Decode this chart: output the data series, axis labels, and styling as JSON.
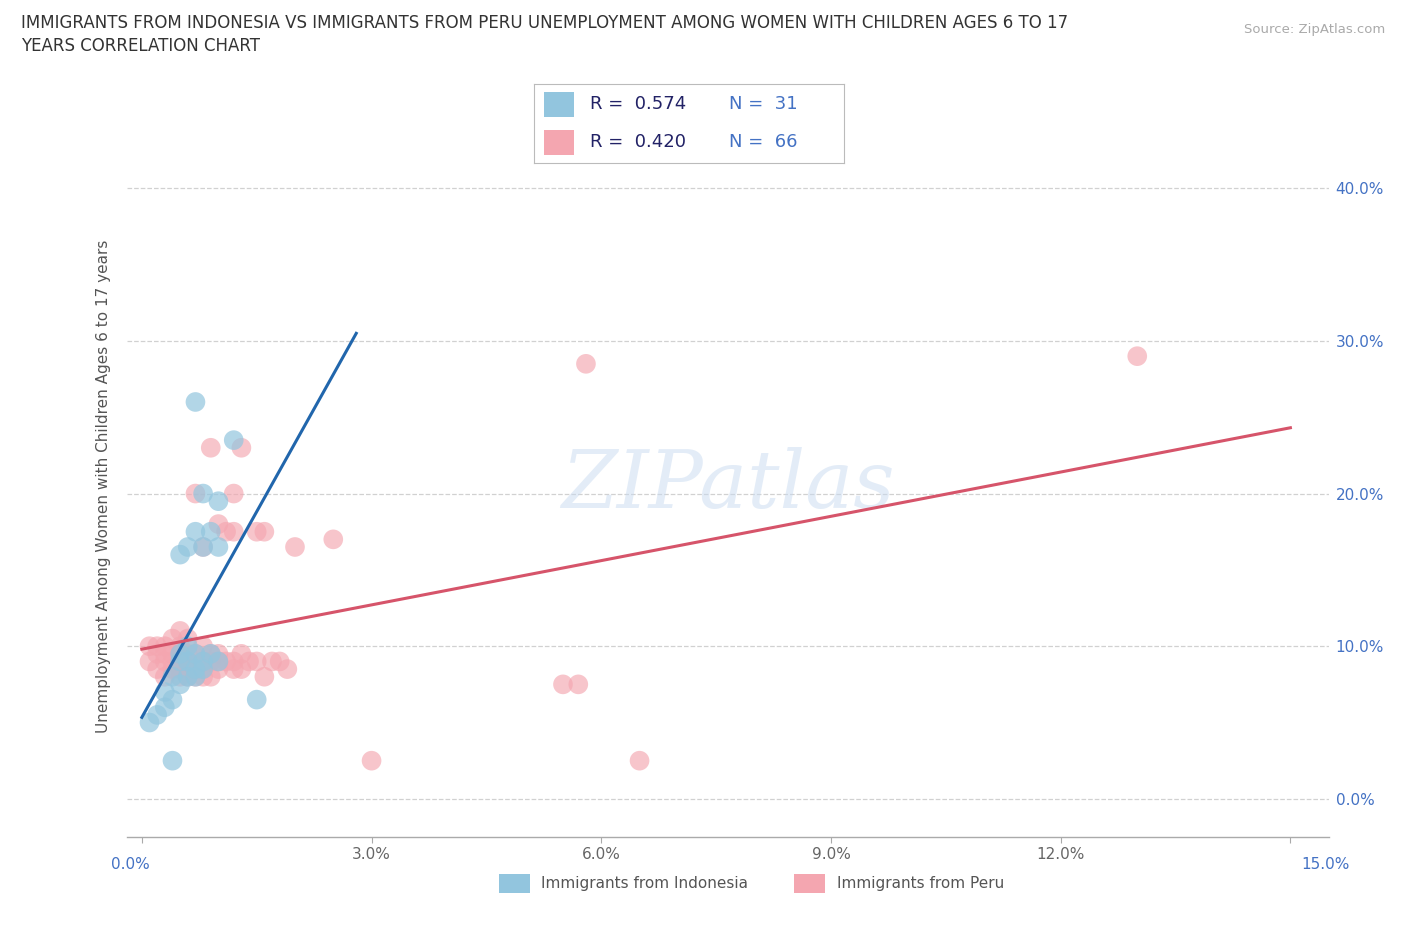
{
  "title_line1": "IMMIGRANTS FROM INDONESIA VS IMMIGRANTS FROM PERU UNEMPLOYMENT AMONG WOMEN WITH CHILDREN AGES 6 TO 17",
  "title_line2": "YEARS CORRELATION CHART",
  "source": "Source: ZipAtlas.com",
  "ylabel": "Unemployment Among Women with Children Ages 6 to 17 years",
  "xlim": [
    -0.002,
    0.155
  ],
  "ylim": [
    -0.025,
    0.435
  ],
  "xticks": [
    0.0,
    0.03,
    0.06,
    0.09,
    0.12,
    0.15
  ],
  "yticks": [
    0.0,
    0.1,
    0.2,
    0.3,
    0.4
  ],
  "xtick_labels_inside": [
    "",
    "3.0%",
    "6.0%",
    "9.0%",
    "12.0%",
    ""
  ],
  "xtick_left_label": "0.0%",
  "xtick_right_label": "15.0%",
  "ytick_labels": [
    "0.0%",
    "10.0%",
    "20.0%",
    "30.0%",
    "40.0%"
  ],
  "background_color": "#ffffff",
  "grid_color": "#cccccc",
  "watermark": "ZIPatlas",
  "color_indonesia": "#92c5de",
  "color_peru": "#f4a6b0",
  "color_indonesia_line": "#2166ac",
  "color_peru_line": "#d6546a",
  "label_indonesia": "Immigrants from Indonesia",
  "label_peru": "Immigrants from Peru",
  "indonesia_x": [
    0.001,
    0.002,
    0.003,
    0.003,
    0.004,
    0.004,
    0.004,
    0.005,
    0.005,
    0.005,
    0.005,
    0.006,
    0.006,
    0.006,
    0.006,
    0.007,
    0.007,
    0.007,
    0.007,
    0.007,
    0.008,
    0.008,
    0.008,
    0.008,
    0.009,
    0.009,
    0.01,
    0.01,
    0.01,
    0.012,
    0.015
  ],
  "indonesia_y": [
    0.05,
    0.055,
    0.06,
    0.07,
    0.025,
    0.065,
    0.08,
    0.075,
    0.09,
    0.095,
    0.16,
    0.08,
    0.09,
    0.1,
    0.165,
    0.08,
    0.085,
    0.095,
    0.175,
    0.26,
    0.085,
    0.09,
    0.165,
    0.2,
    0.095,
    0.175,
    0.09,
    0.165,
    0.195,
    0.235,
    0.065
  ],
  "peru_x": [
    0.001,
    0.001,
    0.002,
    0.002,
    0.002,
    0.003,
    0.003,
    0.003,
    0.003,
    0.004,
    0.004,
    0.004,
    0.004,
    0.005,
    0.005,
    0.005,
    0.005,
    0.005,
    0.005,
    0.006,
    0.006,
    0.006,
    0.006,
    0.006,
    0.007,
    0.007,
    0.007,
    0.007,
    0.008,
    0.008,
    0.008,
    0.008,
    0.008,
    0.009,
    0.009,
    0.009,
    0.009,
    0.01,
    0.01,
    0.01,
    0.01,
    0.011,
    0.011,
    0.012,
    0.012,
    0.012,
    0.012,
    0.013,
    0.013,
    0.013,
    0.014,
    0.015,
    0.015,
    0.016,
    0.016,
    0.017,
    0.018,
    0.019,
    0.02,
    0.025,
    0.03,
    0.055,
    0.057,
    0.058,
    0.065,
    0.13
  ],
  "peru_y": [
    0.09,
    0.1,
    0.085,
    0.095,
    0.1,
    0.08,
    0.09,
    0.095,
    0.1,
    0.085,
    0.09,
    0.095,
    0.105,
    0.08,
    0.085,
    0.09,
    0.095,
    0.1,
    0.11,
    0.08,
    0.085,
    0.09,
    0.095,
    0.105,
    0.08,
    0.085,
    0.095,
    0.2,
    0.08,
    0.085,
    0.09,
    0.1,
    0.165,
    0.08,
    0.09,
    0.095,
    0.23,
    0.085,
    0.09,
    0.095,
    0.18,
    0.09,
    0.175,
    0.085,
    0.09,
    0.175,
    0.2,
    0.085,
    0.095,
    0.23,
    0.09,
    0.09,
    0.175,
    0.08,
    0.175,
    0.09,
    0.09,
    0.085,
    0.165,
    0.17,
    0.025,
    0.075,
    0.075,
    0.285,
    0.025,
    0.29
  ]
}
